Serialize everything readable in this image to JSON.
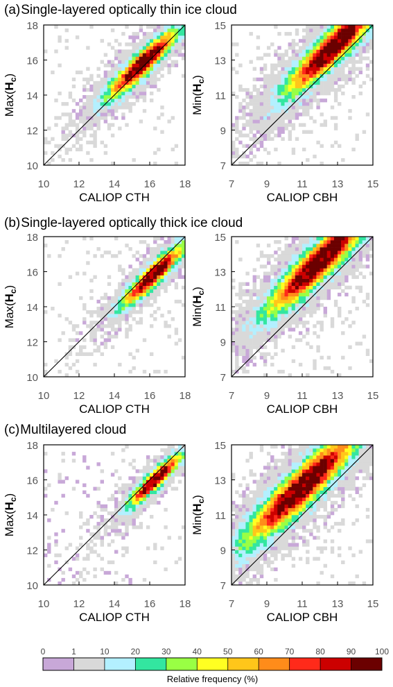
{
  "sections": [
    {
      "label": "(a)",
      "title": "Single-layered optically thin ice cloud"
    },
    {
      "label": "(b)",
      "title": "Single-layered optically thick ice cloud"
    },
    {
      "label": "(c)",
      "title": "Multilayered cloud"
    }
  ],
  "colorbar": {
    "title": "Relative frequency (%)",
    "ticks": [
      "0",
      "1",
      "10",
      "20",
      "30",
      "40",
      "50",
      "60",
      "70",
      "80",
      "90",
      "100"
    ],
    "colors": [
      "#c8a8d8",
      "#d9d9d9",
      "#b3f0ff",
      "#33e6a0",
      "#99ff44",
      "#ffff22",
      "#ffc61a",
      "#ff8c1a",
      "#ff2a1a",
      "#cc0000",
      "#6b0000"
    ]
  },
  "chart_data": [
    {
      "type": "heatmap",
      "panel": "a-left",
      "xlabel": "CALIOP CTH",
      "ylabel_prefix": "Max(",
      "ylabel_var": "H",
      "ylabel_sub": "c",
      "ylabel_suffix": ")",
      "xlim": [
        10,
        18
      ],
      "ylim": [
        10,
        18
      ],
      "xticks": [
        10,
        12,
        14,
        16,
        18
      ],
      "yticks": [
        10,
        12,
        14,
        16,
        18
      ],
      "diagonal": true,
      "density": {
        "center": [
          15.6,
          15.8
        ],
        "spread": 0.8,
        "peak": 10
      }
    },
    {
      "type": "heatmap",
      "panel": "a-right",
      "xlabel": "CALIOP CBH",
      "ylabel_prefix": "Min(",
      "ylabel_var": "H",
      "ylabel_sub": "c",
      "ylabel_suffix": ")",
      "xlim": [
        7,
        15
      ],
      "ylim": [
        7,
        15
      ],
      "xticks": [
        7,
        9,
        11,
        13,
        15
      ],
      "yticks": [
        7,
        9,
        11,
        13,
        15
      ],
      "diagonal": true,
      "density": {
        "center": [
          12.8,
          13.8
        ],
        "spread": 1.1,
        "peak": 10
      }
    },
    {
      "type": "heatmap",
      "panel": "b-left",
      "xlabel": "CALIOP CTH",
      "ylabel_prefix": "Max(",
      "ylabel_var": "H",
      "ylabel_sub": "c",
      "ylabel_suffix": ")",
      "xlim": [
        10,
        18
      ],
      "ylim": [
        10,
        18
      ],
      "xticks": [
        10,
        12,
        14,
        16,
        18
      ],
      "yticks": [
        10,
        12,
        14,
        16,
        18
      ],
      "diagonal": true,
      "density": {
        "center": [
          16.2,
          15.8
        ],
        "spread": 0.7,
        "peak": 10
      }
    },
    {
      "type": "heatmap",
      "panel": "b-right",
      "xlabel": "CALIOP CBH",
      "ylabel_prefix": "Min(",
      "ylabel_var": "H",
      "ylabel_sub": "c",
      "ylabel_suffix": ")",
      "xlim": [
        7,
        15
      ],
      "ylim": [
        7,
        15
      ],
      "xticks": [
        7,
        9,
        11,
        13,
        15
      ],
      "yticks": [
        7,
        9,
        11,
        13,
        15
      ],
      "diagonal": true,
      "density": {
        "center": [
          12.0,
          13.6
        ],
        "spread": 1.2,
        "peak": 10
      }
    },
    {
      "type": "heatmap",
      "panel": "c-left",
      "xlabel": "CALIOP CTH",
      "ylabel_prefix": "Max(",
      "ylabel_var": "H",
      "ylabel_sub": "c",
      "ylabel_suffix": ")",
      "xlim": [
        10,
        18
      ],
      "ylim": [
        10,
        18
      ],
      "xticks": [
        10,
        12,
        14,
        16,
        18
      ],
      "yticks": [
        10,
        12,
        14,
        16,
        18
      ],
      "diagonal": true,
      "density": {
        "center": [
          16.3,
          16.0
        ],
        "spread": 0.6,
        "peak": 10
      }
    },
    {
      "type": "heatmap",
      "panel": "c-right",
      "xlabel": "CALIOP CBH",
      "ylabel_prefix": "Min(",
      "ylabel_var": "H",
      "ylabel_sub": "c",
      "ylabel_suffix": ")",
      "xlim": [
        7,
        15
      ],
      "ylim": [
        7,
        15
      ],
      "xticks": [
        7,
        9,
        11,
        13,
        15
      ],
      "yticks": [
        7,
        9,
        11,
        13,
        15
      ],
      "diagonal": true,
      "density": {
        "center": [
          11.0,
          12.6
        ],
        "spread": 1.3,
        "peak": 10
      }
    }
  ]
}
